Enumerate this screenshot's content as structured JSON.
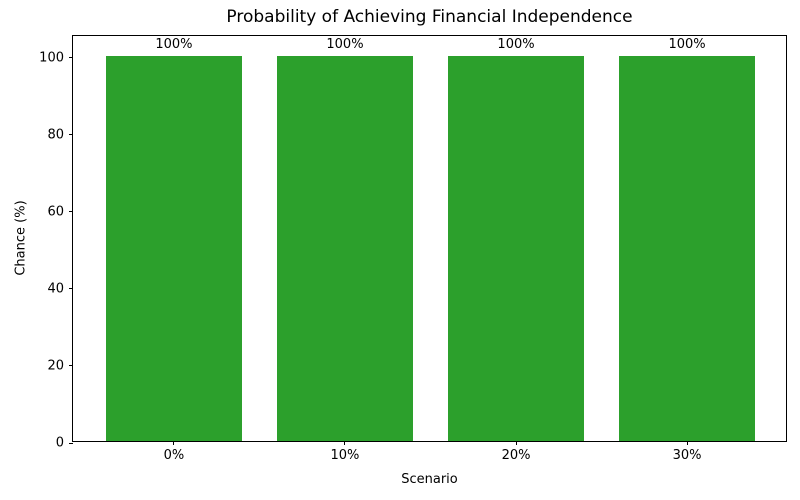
{
  "chart_data": {
    "type": "bar",
    "title": "Probability of Achieving Financial Independence",
    "xlabel": "Scenario",
    "ylabel": "Chance (%)",
    "categories": [
      "0%",
      "10%",
      "20%",
      "30%"
    ],
    "values": [
      100,
      100,
      100,
      100
    ],
    "bar_labels": [
      "100%",
      "100%",
      "100%",
      "100%"
    ],
    "bar_color": "#2ca02c",
    "yticks": [
      0,
      20,
      40,
      60,
      80,
      100
    ],
    "ylim": [
      0,
      105.7
    ],
    "grid": false,
    "legend": "none",
    "plot_background": "#ffffff"
  }
}
